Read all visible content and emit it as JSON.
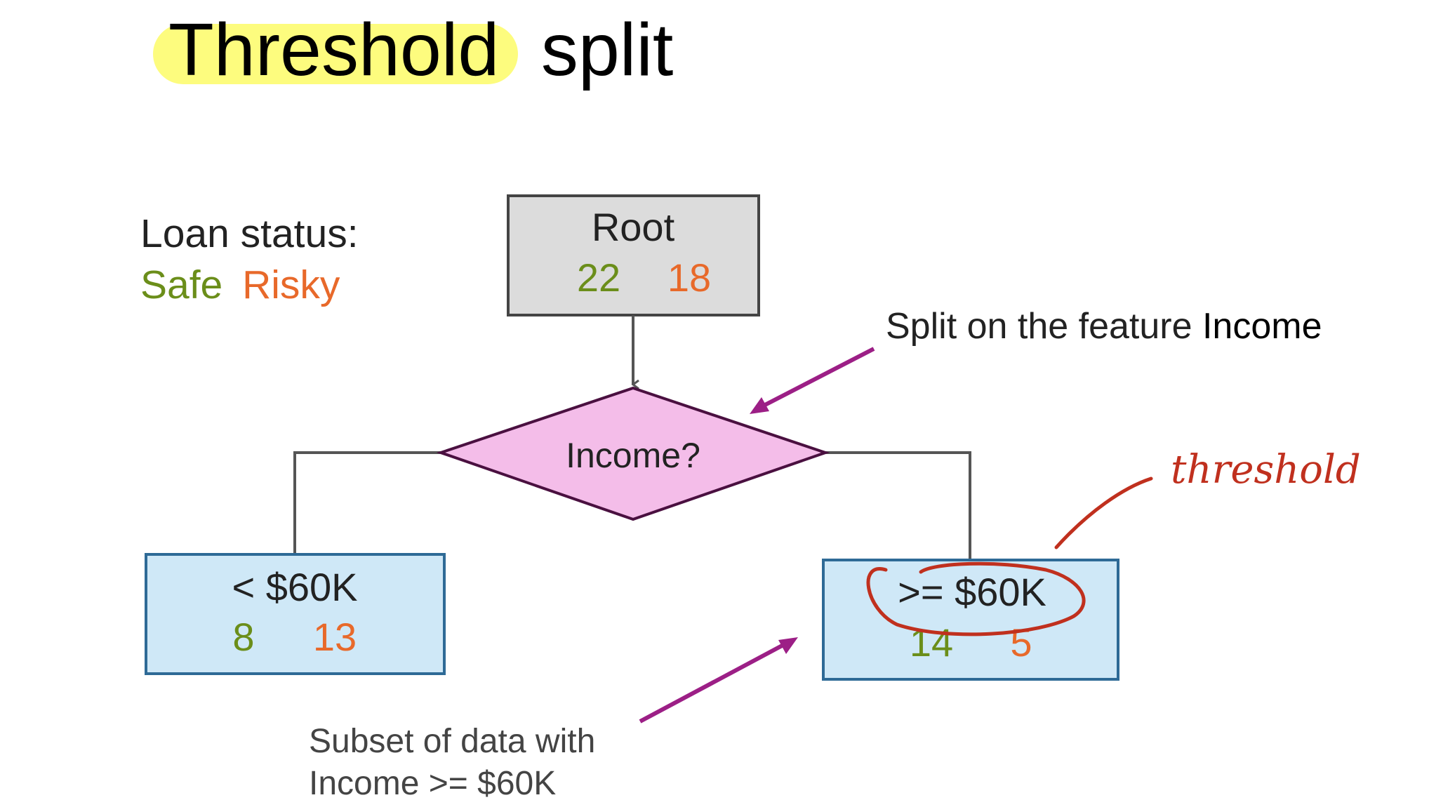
{
  "title": {
    "highlighted": "Threshold",
    "rest": "split"
  },
  "legend": {
    "heading": "Loan status:",
    "safe": "Safe",
    "risky": "Risky"
  },
  "root": {
    "label": "Root",
    "safe": "22",
    "risky": "18"
  },
  "decision": {
    "label": "Income?"
  },
  "left_leaf": {
    "label": "< $60K",
    "safe": "8",
    "risky": "13"
  },
  "right_leaf": {
    "label": ">= $60K",
    "safe": "14",
    "risky": "5"
  },
  "annotations": {
    "split_prefix": "Split on the feature ",
    "split_feature": "Income",
    "subset_line1": "Subset of data with",
    "subset_line2": "Income >= $60K",
    "handwritten": "threshold"
  },
  "colors": {
    "safe": "#6b8e1a",
    "risky": "#e8692a",
    "highlight": "#fdfc7e",
    "root_fill": "#dcdcdc",
    "diamond_fill": "#f4bde9",
    "leaf_fill": "#cfe8f7",
    "leaf_border": "#2e6a96",
    "pointer_arrow": "#9c1f86",
    "ink": "#c0301e"
  }
}
